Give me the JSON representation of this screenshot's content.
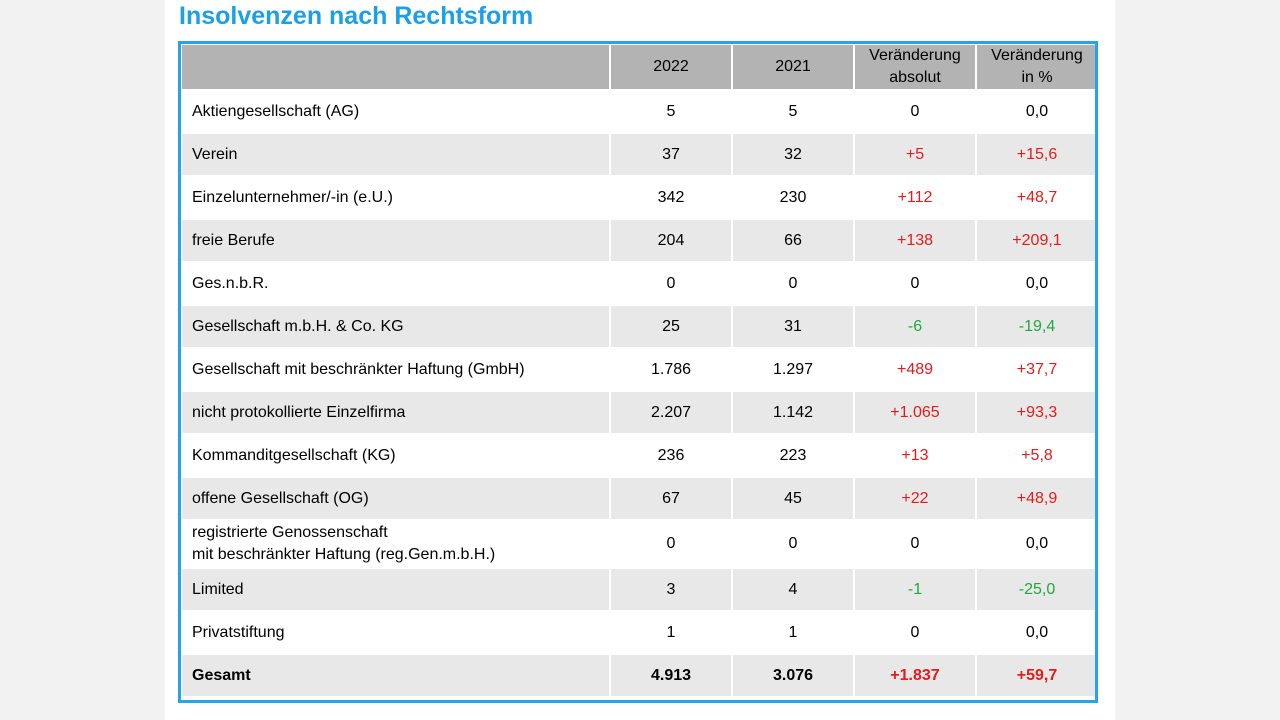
{
  "title": "Insolvenzen nach Rechtsform",
  "header": {
    "label": "",
    "y2022": "2022",
    "y2021": "2021",
    "abs_line1": "Veränderung",
    "abs_line2": "absolut",
    "pct_line1": "Veränderung",
    "pct_line2": "in %"
  },
  "colors": {
    "accent": "#1d9fe6",
    "border": "#27a3ea",
    "increase": "#e41b1b",
    "decrease": "#1fa83f",
    "header_bg": "#b3b3b3",
    "alt_row_bg": "#e8e8e8"
  },
  "rows": [
    {
      "label": "Aktiengesellschaft (AG)",
      "y2022": "5",
      "y2021": "5",
      "abs": "0",
      "pct": "0,0"
    },
    {
      "label": "Verein",
      "y2022": "37",
      "y2021": "32",
      "abs": "+5",
      "pct": "+15,6"
    },
    {
      "label": "Einzelunternehmer/-in (e.U.)",
      "y2022": "342",
      "y2021": "230",
      "abs": "+112",
      "pct": "+48,7"
    },
    {
      "label": "freie Berufe",
      "y2022": "204",
      "y2021": "66",
      "abs": "+138",
      "pct": "+209,1"
    },
    {
      "label": "Ges.n.b.R.",
      "y2022": "0",
      "y2021": "0",
      "abs": "0",
      "pct": "0,0"
    },
    {
      "label": "Gesellschaft m.b.H. & Co. KG",
      "y2022": "25",
      "y2021": "31",
      "abs": "-6",
      "pct": "-19,4"
    },
    {
      "label": "Gesellschaft mit beschränkter Haftung (GmbH)",
      "y2022": "1.786",
      "y2021": "1.297",
      "abs": "+489",
      "pct": "+37,7"
    },
    {
      "label": "nicht protokollierte Einzelfirma",
      "y2022": "2.207",
      "y2021": "1.142",
      "abs": "+1.065",
      "pct": "+93,3"
    },
    {
      "label": "Kommanditgesellschaft (KG)",
      "y2022": "236",
      "y2021": "223",
      "abs": "+13",
      "pct": "+5,8"
    },
    {
      "label": "offene Gesellschaft (OG)",
      "y2022": "67",
      "y2021": "45",
      "abs": "+22",
      "pct": "+48,9"
    },
    {
      "label_line1": "registrierte Genossenschaft",
      "label_line2": "mit beschränkter Haftung (reg.Gen.m.b.H.)",
      "y2022": "0",
      "y2021": "0",
      "abs": "0",
      "pct": "0,0"
    },
    {
      "label": "Limited",
      "y2022": "3",
      "y2021": "4",
      "abs": "-1",
      "pct": "-25,0"
    },
    {
      "label": "Privatstiftung",
      "y2022": "1",
      "y2021": "1",
      "abs": "0",
      "pct": "0,0"
    }
  ],
  "total": {
    "label": "Gesamt",
    "y2022": "4.913",
    "y2021": "3.076",
    "abs": "+1.837",
    "pct": "+59,7"
  }
}
